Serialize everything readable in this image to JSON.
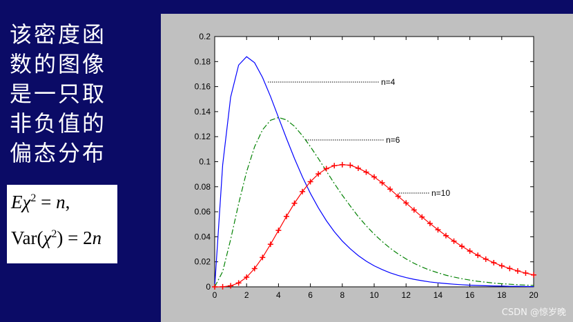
{
  "side_text": [
    "该密度函",
    "数的图像",
    "是一只取",
    "非负值的",
    "偏态分布"
  ],
  "formula": {
    "line1": [
      "E",
      "χ",
      "2",
      " = ",
      "n",
      ","
    ],
    "line2": [
      "Var(",
      "χ",
      "2",
      ") = 2",
      "n"
    ]
  },
  "watermark": "CSDN @惊岁晚",
  "chart_data": {
    "type": "line",
    "x": [
      0,
      0.5,
      1,
      1.5,
      2,
      2.5,
      3,
      3.5,
      4,
      4.5,
      5,
      5.5,
      6,
      6.5,
      7,
      7.5,
      8,
      8.5,
      9,
      9.5,
      10,
      10.5,
      11,
      11.5,
      12,
      12.5,
      13,
      13.5,
      14,
      14.5,
      15,
      15.5,
      16,
      16.5,
      17,
      17.5,
      18,
      18.5,
      19,
      19.5,
      20
    ],
    "series": [
      {
        "name": "n=4",
        "color": "#0000ff",
        "linestyle": "solid",
        "marker": "none",
        "values": [
          0,
          0.0974,
          0.1516,
          0.1772,
          0.1839,
          0.1791,
          0.1673,
          0.1521,
          0.1353,
          0.1186,
          0.1026,
          0.0879,
          0.0747,
          0.0631,
          0.0529,
          0.0441,
          0.0366,
          0.0304,
          0.025,
          0.0205,
          0.0168,
          0.0138,
          0.0112,
          0.0091,
          0.0074,
          0.006,
          0.0049,
          0.0039,
          0.0032,
          0.0026,
          0.0021,
          0.0017,
          0.0013,
          0.0011,
          0.0009,
          0.0007,
          0.0006,
          0.0004,
          0.0004,
          0.0003,
          0.0002
        ]
      },
      {
        "name": "n=6",
        "color": "#008000",
        "linestyle": "dashdot",
        "marker": "none",
        "values": [
          0,
          0.0122,
          0.0379,
          0.0664,
          0.092,
          0.1119,
          0.1255,
          0.1331,
          0.1353,
          0.1334,
          0.1283,
          0.1208,
          0.112,
          0.1025,
          0.0925,
          0.0826,
          0.0732,
          0.0646,
          0.0562,
          0.0488,
          0.0421,
          0.0362,
          0.0309,
          0.0263,
          0.0223,
          0.0188,
          0.0158,
          0.0133,
          0.0112,
          0.0093,
          0.0078,
          0.0065,
          0.0054,
          0.0044,
          0.0037,
          0.003,
          0.0025,
          0.0021,
          0.0017,
          0.0014,
          0.0011
        ]
      },
      {
        "name": "n=10",
        "color": "#ff0000",
        "linestyle": "solid",
        "marker": "plus",
        "values": [
          0,
          6e-05,
          0.0008,
          0.0031,
          0.0077,
          0.0146,
          0.0235,
          0.034,
          0.0451,
          0.0563,
          0.0668,
          0.0761,
          0.084,
          0.0902,
          0.0944,
          0.0968,
          0.0976,
          0.0972,
          0.0948,
          0.0917,
          0.0878,
          0.0831,
          0.078,
          0.0724,
          0.067,
          0.0614,
          0.0558,
          0.0506,
          0.0456,
          0.0409,
          0.0365,
          0.0324,
          0.0286,
          0.0252,
          0.0221,
          0.0193,
          0.0168,
          0.0147,
          0.0127,
          0.011,
          0.0095
        ]
      }
    ],
    "xlim": [
      0,
      20
    ],
    "xticks": [
      0,
      2,
      4,
      6,
      8,
      10,
      12,
      14,
      16,
      18,
      20
    ],
    "ylim": [
      0,
      0.2
    ],
    "yticks": [
      0,
      0.02,
      0.04,
      0.06,
      0.08,
      0.1,
      0.12,
      0.14,
      0.16,
      0.18,
      0.2
    ],
    "grid": false
  }
}
